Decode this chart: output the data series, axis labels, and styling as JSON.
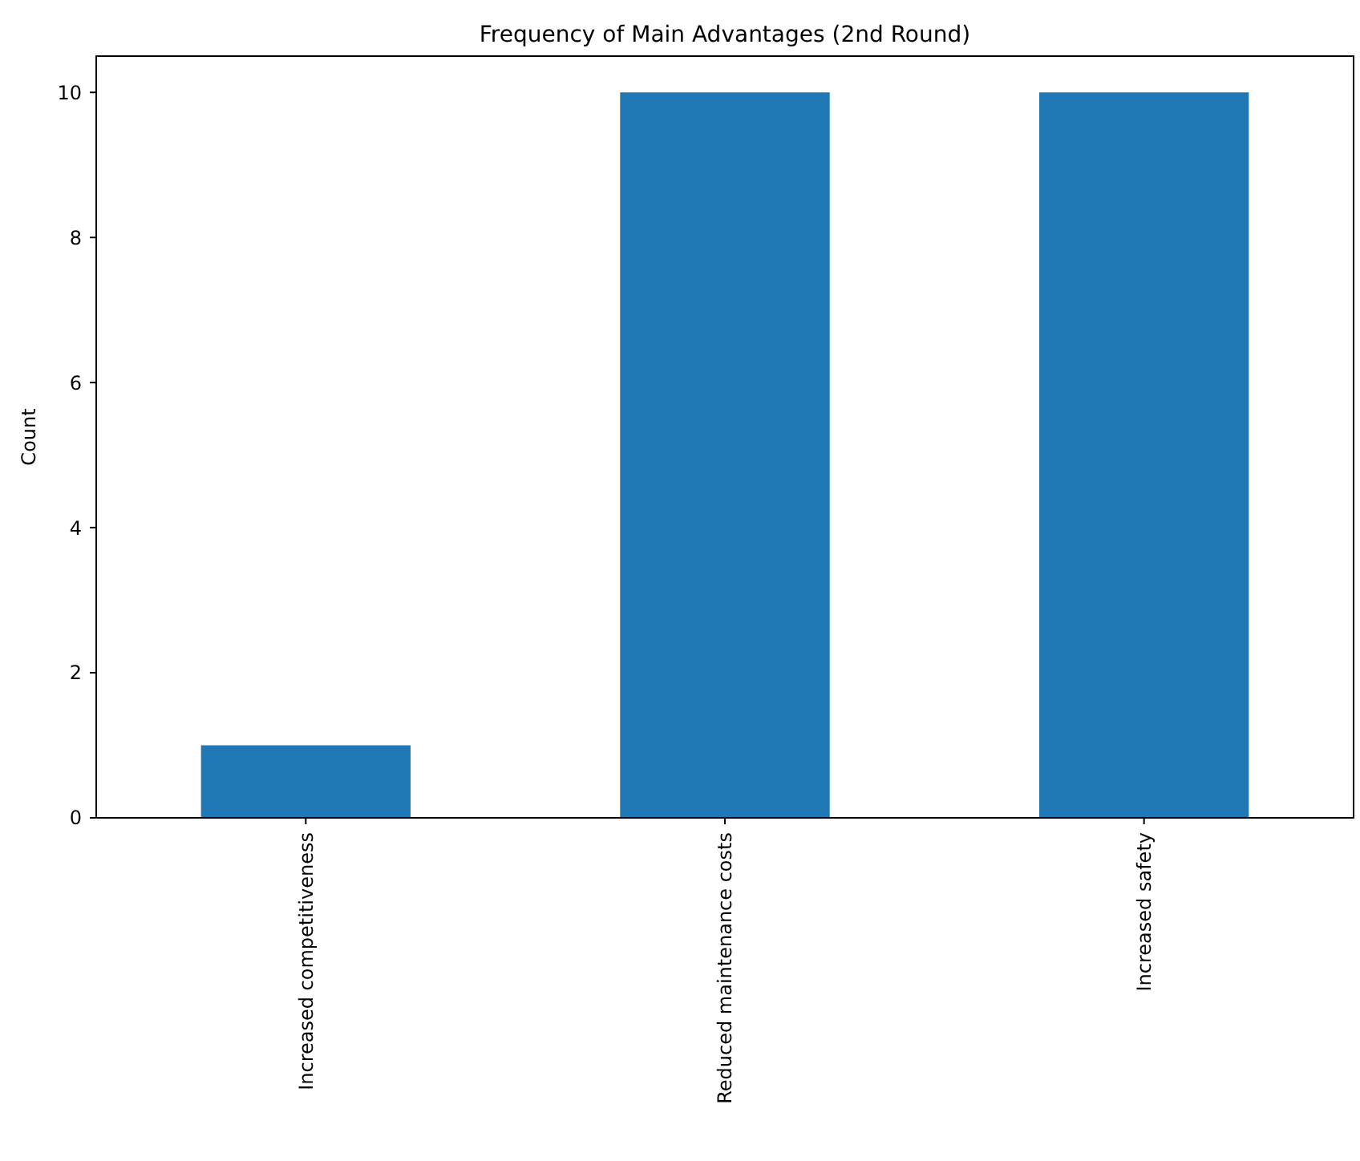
{
  "chart_data": {
    "type": "bar",
    "title": "Frequency of Main Advantages (2nd Round)",
    "ylabel": "Count",
    "categories": [
      "Increased competitiveness",
      "Reduced maintenance costs",
      "Increased safety"
    ],
    "values": [
      1,
      10,
      10
    ],
    "color": "#1f77b4",
    "ylim": [
      0,
      10.5
    ],
    "yticks": [
      0,
      2,
      4,
      6,
      8,
      10
    ],
    "grid": false
  }
}
